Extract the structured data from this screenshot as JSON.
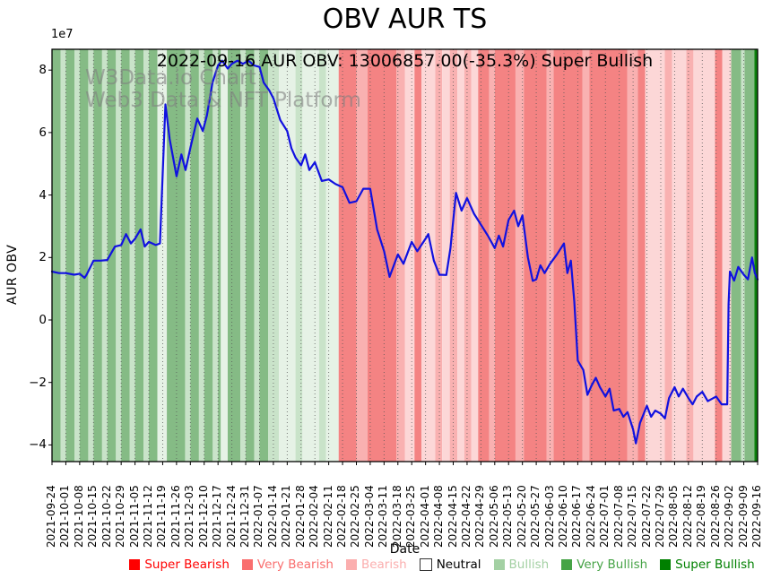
{
  "title": "OBV AUR TS",
  "subtitle": "2022-09-16 AUR OBV: 13006857.00(-35.3%) Super Bullish",
  "watermark": {
    "line1": "W3Data.io Chart",
    "line2": "Web3 Data & NFT Platform"
  },
  "axes": {
    "y_label": "AUR OBV",
    "x_label": "Date",
    "y_offset_text": "1e7",
    "y_ticks": [
      8,
      6,
      4,
      2,
      0,
      -2,
      -4
    ],
    "y_tick_labels": [
      "8",
      "6",
      "4",
      "2",
      "0",
      "−2",
      "−4"
    ]
  },
  "legend": {
    "items": [
      {
        "label": "Super Bearish",
        "color": "#ff0000"
      },
      {
        "label": "Very Bearish",
        "color": "#f96e6e"
      },
      {
        "label": "Bearish",
        "color": "#fbaeae"
      },
      {
        "label": "Neutral",
        "color": "#ffffff",
        "text": "#000000",
        "border": true
      },
      {
        "label": "Bullish",
        "color": "#a3d0a3"
      },
      {
        "label": "Very Bullish",
        "color": "#46a346"
      },
      {
        "label": "Super Bullish",
        "color": "#008000"
      }
    ]
  },
  "colors": {
    "line": "#1111e0",
    "gridline": "#555555",
    "band_colors": {
      "vb": "#85bb85",
      "bg": "#c9e3c9",
      "pg": "#e6f2e6",
      "rm": "#f48383",
      "pk": "#f9b1b1",
      "pl": "#fcd7d7",
      "sg": "#0c800c"
    }
  },
  "chart_data": {
    "type": "line",
    "title": "OBV AUR TS",
    "xlabel": "Date",
    "ylabel": "AUR OBV",
    "y_unit": "1e7",
    "ylim": [
      -4.6,
      8.7
    ],
    "grid": "vertical-dotted",
    "x_tick_labels": [
      "2021-09-24",
      "2021-10-01",
      "2021-10-08",
      "2021-10-15",
      "2021-10-22",
      "2021-10-29",
      "2021-11-05",
      "2021-11-12",
      "2021-11-19",
      "2021-11-26",
      "2021-12-03",
      "2021-12-10",
      "2021-12-17",
      "2021-12-24",
      "2021-12-31",
      "2022-01-07",
      "2022-01-14",
      "2022-01-21",
      "2022-01-28",
      "2022-02-04",
      "2022-02-11",
      "2022-02-18",
      "2022-02-25",
      "2022-03-04",
      "2022-03-11",
      "2022-03-18",
      "2022-03-25",
      "2022-04-01",
      "2022-04-08",
      "2022-04-15",
      "2022-04-22",
      "2022-04-29",
      "2022-05-06",
      "2022-05-13",
      "2022-05-20",
      "2022-05-27",
      "2022-06-03",
      "2022-06-10",
      "2022-06-17",
      "2022-06-24",
      "2022-07-01",
      "2022-07-08",
      "2022-07-15",
      "2022-07-22",
      "2022-07-29",
      "2022-08-05",
      "2022-08-12",
      "2022-08-19",
      "2022-08-26",
      "2022-09-02",
      "2022-09-09",
      "2022-09-16"
    ],
    "series": [
      {
        "name": "AUR OBV",
        "note": "points are [week_index, value_x1e7]; week_index 0 = 2021-09-24, 51 = 2022-09-16; last value 1.30 = 13006857.00",
        "points": [
          [
            0,
            1.55
          ],
          [
            0.5,
            1.5
          ],
          [
            1,
            1.5
          ],
          [
            1.6,
            1.45
          ],
          [
            2,
            1.48
          ],
          [
            2.35,
            1.35
          ],
          [
            2.5,
            1.45
          ],
          [
            3,
            1.9
          ],
          [
            3.5,
            1.9
          ],
          [
            4,
            1.92
          ],
          [
            4.55,
            2.35
          ],
          [
            5,
            2.4
          ],
          [
            5.35,
            2.75
          ],
          [
            5.7,
            2.45
          ],
          [
            6,
            2.6
          ],
          [
            6.4,
            2.9
          ],
          [
            6.7,
            2.35
          ],
          [
            7,
            2.5
          ],
          [
            7.5,
            2.4
          ],
          [
            7.8,
            2.45
          ],
          [
            8.2,
            6.9
          ],
          [
            8.5,
            5.8
          ],
          [
            9,
            4.6
          ],
          [
            9.35,
            5.3
          ],
          [
            9.65,
            4.8
          ],
          [
            10,
            5.5
          ],
          [
            10.5,
            6.45
          ],
          [
            10.9,
            6.05
          ],
          [
            11.2,
            6.55
          ],
          [
            11.6,
            7.6
          ],
          [
            12,
            8.15
          ],
          [
            12.3,
            8.3
          ],
          [
            12.7,
            8.05
          ],
          [
            13,
            8.2
          ],
          [
            13.4,
            8.3
          ],
          [
            13.8,
            8.2
          ],
          [
            14.2,
            8.3
          ],
          [
            14.6,
            8.15
          ],
          [
            15,
            8.1
          ],
          [
            15.3,
            7.6
          ],
          [
            15.7,
            7.35
          ],
          [
            16,
            7.1
          ],
          [
            16.5,
            6.4
          ],
          [
            17,
            6.05
          ],
          [
            17.3,
            5.5
          ],
          [
            17.6,
            5.2
          ],
          [
            18,
            4.95
          ],
          [
            18.3,
            5.3
          ],
          [
            18.6,
            4.8
          ],
          [
            19,
            5.05
          ],
          [
            19.5,
            4.45
          ],
          [
            20,
            4.5
          ],
          [
            20.5,
            4.35
          ],
          [
            21,
            4.25
          ],
          [
            21.5,
            3.75
          ],
          [
            22,
            3.8
          ],
          [
            22.5,
            4.2
          ],
          [
            23,
            4.2
          ],
          [
            23.5,
            2.9
          ],
          [
            24,
            2.2
          ],
          [
            24.4,
            1.38
          ],
          [
            25,
            2.1
          ],
          [
            25.4,
            1.8
          ],
          [
            26,
            2.5
          ],
          [
            26.4,
            2.2
          ],
          [
            27,
            2.6
          ],
          [
            27.2,
            2.75
          ],
          [
            27.6,
            1.9
          ],
          [
            28,
            1.45
          ],
          [
            28.5,
            1.44
          ],
          [
            28.8,
            2.3
          ],
          [
            29.2,
            4.07
          ],
          [
            29.6,
            3.5
          ],
          [
            30,
            3.9
          ],
          [
            30.5,
            3.4
          ],
          [
            31,
            3.05
          ],
          [
            31.5,
            2.7
          ],
          [
            32,
            2.3
          ],
          [
            32.3,
            2.7
          ],
          [
            32.6,
            2.35
          ],
          [
            33,
            3.2
          ],
          [
            33.4,
            3.5
          ],
          [
            33.7,
            3.0
          ],
          [
            34,
            3.35
          ],
          [
            34.4,
            2.0
          ],
          [
            34.75,
            1.25
          ],
          [
            35,
            1.3
          ],
          [
            35.3,
            1.75
          ],
          [
            35.6,
            1.5
          ],
          [
            36,
            1.8
          ],
          [
            36.5,
            2.1
          ],
          [
            37,
            2.45
          ],
          [
            37.25,
            1.5
          ],
          [
            37.5,
            1.9
          ],
          [
            37.75,
            0.6
          ],
          [
            38,
            -1.3
          ],
          [
            38.4,
            -1.6
          ],
          [
            38.7,
            -2.4
          ],
          [
            39,
            -2.1
          ],
          [
            39.3,
            -1.85
          ],
          [
            39.6,
            -2.15
          ],
          [
            40,
            -2.45
          ],
          [
            40.3,
            -2.2
          ],
          [
            40.6,
            -2.9
          ],
          [
            41,
            -2.85
          ],
          [
            41.3,
            -3.1
          ],
          [
            41.6,
            -2.95
          ],
          [
            42,
            -3.5
          ],
          [
            42.2,
            -3.95
          ],
          [
            42.5,
            -3.3
          ],
          [
            43,
            -2.75
          ],
          [
            43.3,
            -3.1
          ],
          [
            43.6,
            -2.9
          ],
          [
            44,
            -3.0
          ],
          [
            44.3,
            -3.15
          ],
          [
            44.6,
            -2.5
          ],
          [
            45,
            -2.15
          ],
          [
            45.3,
            -2.45
          ],
          [
            45.6,
            -2.2
          ],
          [
            46,
            -2.5
          ],
          [
            46.3,
            -2.7
          ],
          [
            46.6,
            -2.45
          ],
          [
            47,
            -2.3
          ],
          [
            47.4,
            -2.6
          ],
          [
            48,
            -2.45
          ],
          [
            48.4,
            -2.7
          ],
          [
            48.8,
            -2.7
          ],
          [
            48.9,
            0.5
          ],
          [
            49,
            1.55
          ],
          [
            49.3,
            1.26
          ],
          [
            49.6,
            1.7
          ],
          [
            50,
            1.45
          ],
          [
            50.3,
            1.3
          ],
          [
            50.6,
            2.0
          ],
          [
            50.8,
            1.5
          ],
          [
            51,
            1.3
          ]
        ]
      }
    ],
    "bands": {
      "note": "background sentiment bands [start_week, end_week, color_key]; vb=Very Bullish, bg=Bullish, pg=pale Bullish, rm=Very Bearish, pk=Bearish, pl=pale Bearish, sg=Super Bullish",
      "segments": [
        [
          0,
          0.62,
          "vb"
        ],
        [
          0.62,
          1,
          "bg"
        ],
        [
          1,
          1.62,
          "vb"
        ],
        [
          1.62,
          2,
          "bg"
        ],
        [
          2,
          2.62,
          "vb"
        ],
        [
          2.62,
          3,
          "bg"
        ],
        [
          3,
          3.62,
          "vb"
        ],
        [
          3.62,
          4,
          "bg"
        ],
        [
          4,
          4.62,
          "vb"
        ],
        [
          4.62,
          5,
          "bg"
        ],
        [
          5,
          5.62,
          "vb"
        ],
        [
          5.62,
          6,
          "bg"
        ],
        [
          6,
          6.62,
          "vb"
        ],
        [
          6.62,
          7,
          "bg"
        ],
        [
          7,
          7.62,
          "vb"
        ],
        [
          7.62,
          8.3,
          "pg"
        ],
        [
          8.3,
          9.62,
          "vb"
        ],
        [
          9.62,
          10,
          "bg"
        ],
        [
          10,
          10.62,
          "vb"
        ],
        [
          10.62,
          11,
          "bg"
        ],
        [
          11,
          11.62,
          "vb"
        ],
        [
          11.62,
          12,
          "bg"
        ],
        [
          12,
          12.2,
          "vb"
        ],
        [
          12.2,
          12.7,
          "pg"
        ],
        [
          12.7,
          13.62,
          "vb"
        ],
        [
          13.62,
          14,
          "bg"
        ],
        [
          14,
          14.62,
          "vb"
        ],
        [
          14.62,
          15,
          "bg"
        ],
        [
          15,
          15.62,
          "vb"
        ],
        [
          15.62,
          16,
          "bg"
        ],
        [
          16,
          16.4,
          "bg"
        ],
        [
          16.4,
          17.6,
          "pg"
        ],
        [
          17.6,
          18.1,
          "bg"
        ],
        [
          18.1,
          19.3,
          "pg"
        ],
        [
          19.3,
          19.8,
          "bg"
        ],
        [
          19.8,
          20.72,
          "pg"
        ],
        [
          20.72,
          22.0,
          "rm"
        ],
        [
          22.0,
          22.8,
          "pk"
        ],
        [
          22.8,
          24.9,
          "rm"
        ],
        [
          24.9,
          25.5,
          "pk"
        ],
        [
          25.5,
          26.2,
          "pl"
        ],
        [
          26.2,
          26.7,
          "rm"
        ],
        [
          26.7,
          27.7,
          "pl"
        ],
        [
          27.7,
          28.2,
          "pk"
        ],
        [
          28.2,
          28.75,
          "pl"
        ],
        [
          28.75,
          29.3,
          "pk"
        ],
        [
          29.3,
          29.8,
          "pl"
        ],
        [
          29.8,
          30.3,
          "pk"
        ],
        [
          30.3,
          30.8,
          "pl"
        ],
        [
          30.8,
          31.6,
          "rm"
        ],
        [
          31.6,
          32.0,
          "pk"
        ],
        [
          32.0,
          33.5,
          "rm"
        ],
        [
          33.5,
          34.1,
          "pk"
        ],
        [
          34.1,
          35.74,
          "rm"
        ],
        [
          35.74,
          36.26,
          "pk"
        ],
        [
          36.26,
          38.33,
          "rm"
        ],
        [
          38.33,
          38.85,
          "pk"
        ],
        [
          38.85,
          41.57,
          "rm"
        ],
        [
          41.57,
          42.35,
          "pk"
        ],
        [
          42.35,
          42.87,
          "rm"
        ],
        [
          42.87,
          44.29,
          "pl"
        ],
        [
          44.29,
          44.81,
          "pk"
        ],
        [
          44.81,
          45.85,
          "pl"
        ],
        [
          45.85,
          46.36,
          "pk"
        ],
        [
          46.36,
          47.92,
          "pl"
        ],
        [
          47.92,
          48.44,
          "rm"
        ],
        [
          48.44,
          49.09,
          "pl"
        ],
        [
          49.09,
          49.8,
          "vb"
        ],
        [
          49.8,
          50.06,
          "bg"
        ],
        [
          50.06,
          50.77,
          "vb"
        ],
        [
          50.77,
          51,
          "sg"
        ]
      ]
    },
    "legend_entries": [
      "Super Bearish",
      "Very Bearish",
      "Bearish",
      "Neutral",
      "Bullish",
      "Very Bullish",
      "Super Bullish"
    ],
    "legend_position": "bottom"
  }
}
